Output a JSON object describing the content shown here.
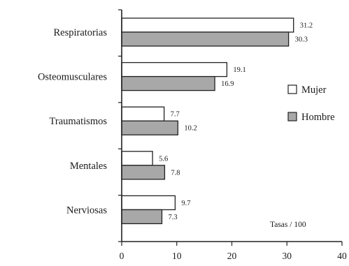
{
  "chart_data": {
    "type": "bar",
    "orientation": "horizontal",
    "categories": [
      "Respiratorias",
      "Osteomusculares",
      "Traumatismos",
      "Mentales",
      "Nerviosas"
    ],
    "series": [
      {
        "name": "Mujer",
        "values": [
          31.2,
          19.1,
          7.7,
          5.6,
          9.7
        ],
        "labels": [
          "31.2",
          "19.1",
          "7.7",
          "5.6",
          "9.7"
        ],
        "color": "#ffffff"
      },
      {
        "name": "Hombre",
        "values": [
          30.3,
          16.9,
          10.2,
          7.8,
          7.3
        ],
        "labels": [
          "30.3",
          "16.9",
          "10.2",
          "7.8",
          "7.3"
        ],
        "color": "#a8a8a8"
      }
    ],
    "xlim": [
      0,
      40
    ],
    "xticks": [
      0,
      10,
      20,
      30,
      40
    ],
    "xtick_labels": [
      "0",
      "10",
      "20",
      "30",
      "40"
    ],
    "annotation": "Tasas / 100",
    "legend": {
      "position": "right",
      "entries": [
        "Mujer",
        "Hombre"
      ]
    },
    "grid": false,
    "title": "",
    "xlabel": "",
    "ylabel": ""
  }
}
